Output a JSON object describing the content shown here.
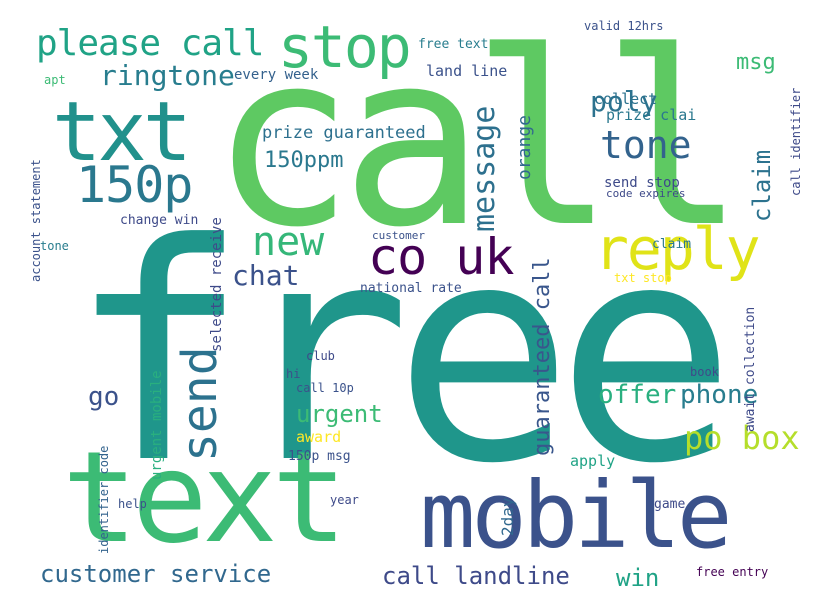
{
  "words": [
    {
      "text": "free",
      "color": "#1f968b"
    },
    {
      "text": "call",
      "color": "#5ec962"
    },
    {
      "text": "text",
      "color": "#3cbb75"
    },
    {
      "text": "mobile",
      "color": "#3b528b"
    },
    {
      "text": "txt",
      "color": "#21918c"
    },
    {
      "text": "stop",
      "color": "#3cbb75"
    },
    {
      "text": "reply",
      "color": "#e0e318"
    },
    {
      "text": "co uk",
      "color": "#440154"
    },
    {
      "text": "please call",
      "color": "#20a386"
    },
    {
      "text": "150p",
      "color": "#2a788e"
    },
    {
      "text": "new",
      "color": "#35b779"
    },
    {
      "text": "send",
      "color": "#2c728e"
    },
    {
      "text": "ringtone",
      "color": "#287d8e"
    },
    {
      "text": "message",
      "color": "#2d708e"
    },
    {
      "text": "tone",
      "color": "#33638d"
    },
    {
      "text": "poly",
      "color": "#2c728e"
    },
    {
      "text": "chat",
      "color": "#3b528b"
    },
    {
      "text": "150ppm",
      "color": "#2a788e"
    },
    {
      "text": "prize guaranteed",
      "color": "#2d708e"
    },
    {
      "text": "claim",
      "color": "#2c728e"
    },
    {
      "text": "offer",
      "color": "#29af7f"
    },
    {
      "text": "phone",
      "color": "#287d8e"
    },
    {
      "text": "po box",
      "color": "#b5de2b"
    },
    {
      "text": "customer service",
      "color": "#31688e"
    },
    {
      "text": "call landline",
      "color": "#3e4a89"
    },
    {
      "text": "win",
      "color": "#20a386"
    },
    {
      "text": "urgent",
      "color": "#3cbb75"
    },
    {
      "text": "guaranteed call",
      "color": "#39568c"
    },
    {
      "text": "every week",
      "color": "#34618d"
    },
    {
      "text": "land line",
      "color": "#3b528b"
    },
    {
      "text": "orange",
      "color": "#31688e"
    },
    {
      "text": "collect",
      "color": "#2c728e"
    },
    {
      "text": "prize clai",
      "color": "#2a788e"
    },
    {
      "text": "msg",
      "color": "#3cbb75"
    },
    {
      "text": "free text",
      "color": "#287d8e"
    },
    {
      "text": "send stop",
      "color": "#3e4a89"
    },
    {
      "text": "tone",
      "color": "#287d8e"
    },
    {
      "text": "go",
      "color": "#3b528b"
    },
    {
      "text": "award",
      "color": "#fde725"
    },
    {
      "text": "apply",
      "color": "#20a386"
    },
    {
      "text": "national rate",
      "color": "#3b528b"
    },
    {
      "text": "selected receive",
      "color": "#3e4a89"
    },
    {
      "text": "urgent mobile",
      "color": "#29af7f"
    },
    {
      "text": "change win",
      "color": "#3e4a89"
    },
    {
      "text": "150p msg",
      "color": "#3b528b"
    },
    {
      "text": "2day",
      "color": "#31688e"
    },
    {
      "text": "await collection",
      "color": "#3e4a89"
    },
    {
      "text": "free entry",
      "color": "#440154"
    },
    {
      "text": "claim",
      "color": "#2a788e"
    },
    {
      "text": "account statement",
      "color": "#3b528b"
    },
    {
      "text": "identifier code",
      "color": "#33638d"
    },
    {
      "text": "txt stop",
      "color": "#fde725"
    },
    {
      "text": "customer",
      "color": "#3b528b"
    },
    {
      "text": "valid 12hrs",
      "color": "#3b528b"
    },
    {
      "text": "book",
      "color": "#3e4a89"
    },
    {
      "text": "help",
      "color": "#3b528b"
    },
    {
      "text": "game",
      "color": "#3e4a89"
    },
    {
      "text": "year",
      "color": "#3e4a89"
    },
    {
      "text": "apt",
      "color": "#3cbb75"
    },
    {
      "text": "call 10p",
      "color": "#3b528b"
    },
    {
      "text": "club",
      "color": "#3e4a89"
    },
    {
      "text": "hi",
      "color": "#3b528b"
    },
    {
      "text": "call identifier",
      "color": "#3e4a89"
    },
    {
      "text": "code expires",
      "color": "#3e4a89"
    }
  ]
}
